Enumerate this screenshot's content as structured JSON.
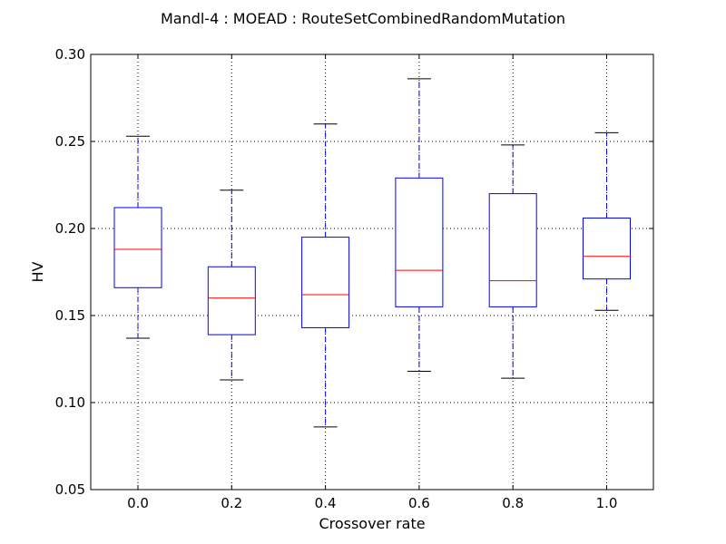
{
  "chart_data": {
    "type": "boxplot",
    "title": "Mandl-4 : MOEAD : RouteSetCombinedRandomMutation",
    "xlabel": "Crossover rate",
    "ylabel": "HV",
    "ylim": [
      0.05,
      0.3
    ],
    "yticks": [
      "0.05",
      "0.10",
      "0.15",
      "0.20",
      "0.25",
      "0.30"
    ],
    "grid": true,
    "categories": [
      "0.0",
      "0.2",
      "0.4",
      "0.6",
      "0.8",
      "1.0"
    ],
    "boxes": [
      {
        "category": "0.0",
        "whisker_low": 0.137,
        "q1": 0.166,
        "median": 0.188,
        "q3": 0.212,
        "whisker_high": 0.253
      },
      {
        "category": "0.2",
        "whisker_low": 0.113,
        "q1": 0.139,
        "median": 0.16,
        "q3": 0.178,
        "whisker_high": 0.222
      },
      {
        "category": "0.4",
        "whisker_low": 0.086,
        "q1": 0.143,
        "median": 0.162,
        "q3": 0.195,
        "whisker_high": 0.26
      },
      {
        "category": "0.6",
        "whisker_low": 0.118,
        "q1": 0.155,
        "median": 0.176,
        "q3": 0.229,
        "whisker_high": 0.286
      },
      {
        "category": "0.8",
        "whisker_low": 0.114,
        "q1": 0.155,
        "median": 0.17,
        "q3": 0.22,
        "whisker_high": 0.248
      },
      {
        "category": "1.0",
        "whisker_low": 0.153,
        "q1": 0.171,
        "median": 0.184,
        "q3": 0.206,
        "whisker_high": 0.255
      }
    ],
    "colors": {
      "box": "#0000ff",
      "whisker": "#0000ff",
      "median": "#ff0000",
      "cap": "#000000",
      "grid": "#000000"
    }
  }
}
